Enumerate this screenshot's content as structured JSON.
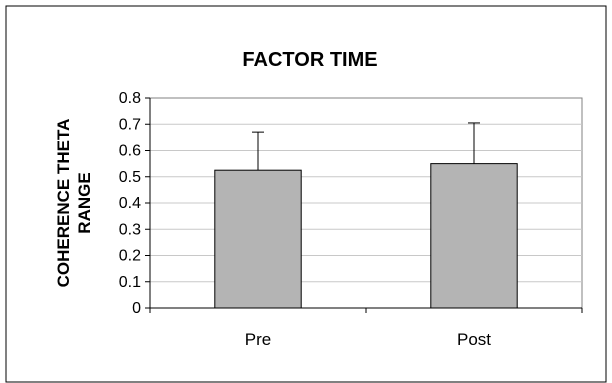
{
  "chart_data": {
    "type": "bar",
    "title": "FACTOR TIME",
    "xlabel": "",
    "ylabel_lines": [
      "COHERENCE THETA",
      "RANGE"
    ],
    "categories": [
      "Pre",
      "Post"
    ],
    "series": [
      {
        "values": [
          0.525,
          0.55
        ],
        "error_plus": [
          0.145,
          0.155
        ],
        "color": "#b4b4b4"
      }
    ],
    "ylim": [
      0,
      0.8
    ],
    "yticks": [
      0,
      0.1,
      0.2,
      0.3,
      0.4,
      0.5,
      0.6,
      0.7,
      0.8
    ],
    "ytick_labels": [
      "0",
      "0.1",
      "0.2",
      "0.3",
      "0.4",
      "0.5",
      "0.6",
      "0.7",
      "0.8"
    ],
    "grid": true,
    "legend": "none"
  },
  "colors": {
    "bar_fill": "#b4b4b4",
    "bar_stroke": "#000000",
    "grid": "#c8c8c8",
    "frame": "#000000"
  }
}
